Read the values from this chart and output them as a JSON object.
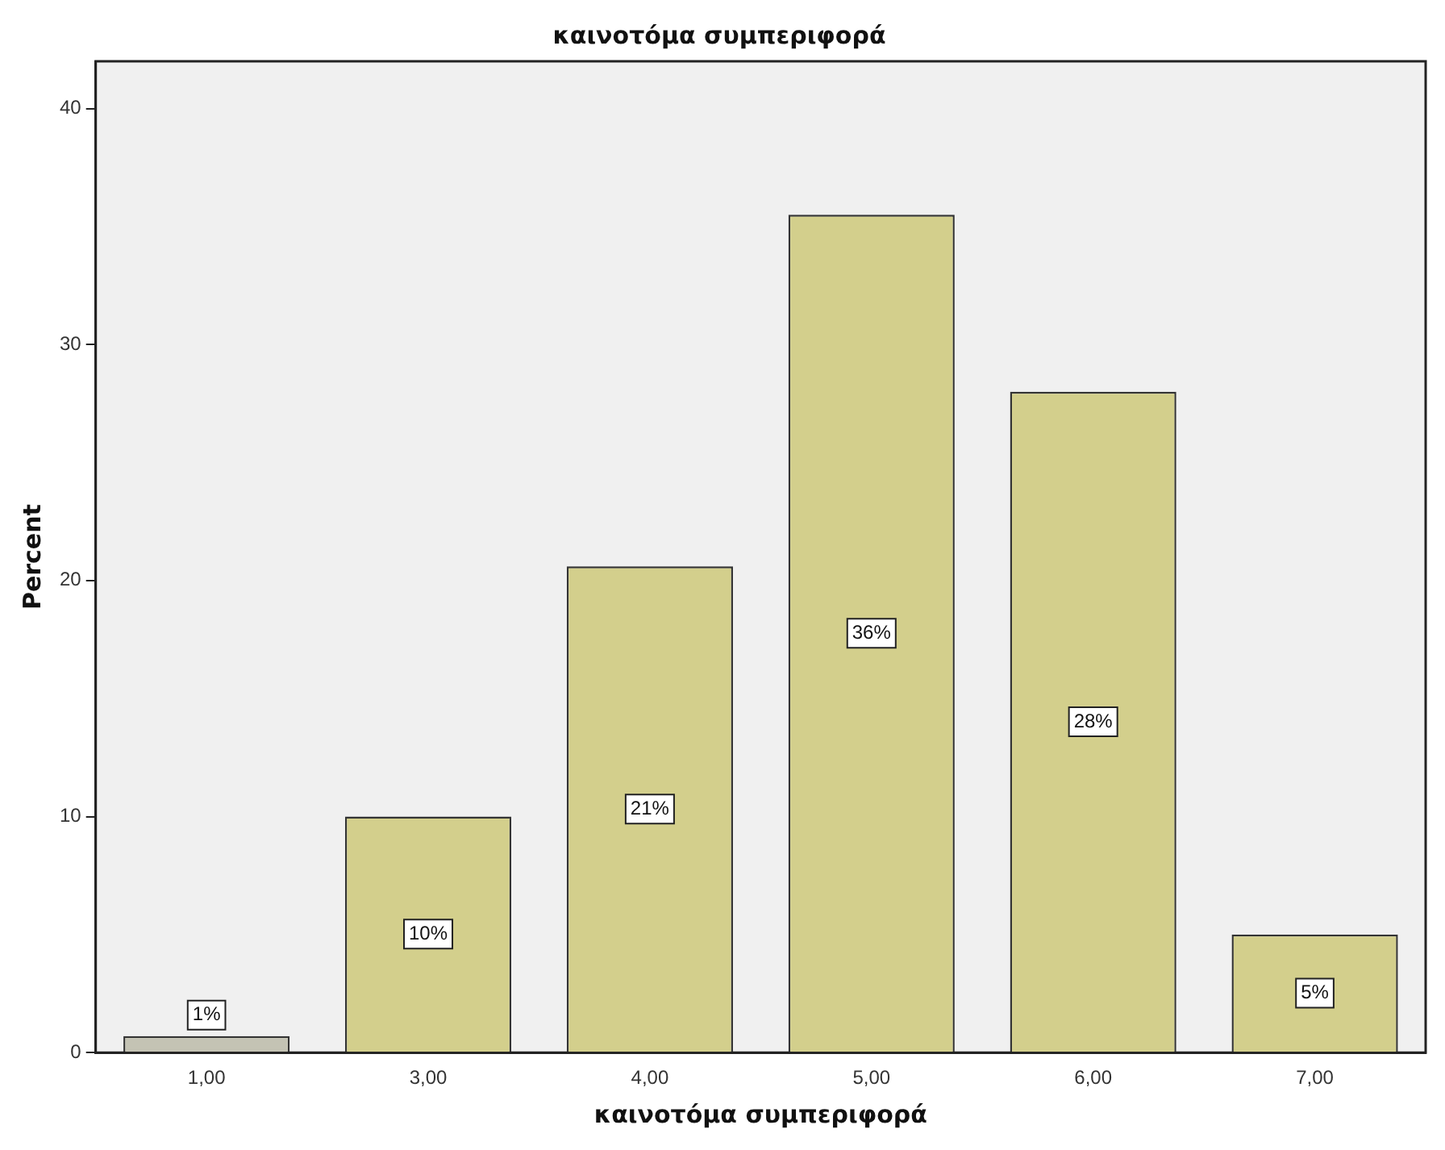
{
  "chart_data": {
    "type": "bar",
    "title": "καινοτόμα συμπεριφορά",
    "xlabel": "καινοτόμα συμπεριφορά",
    "ylabel": "Percent",
    "categories": [
      "1,00",
      "3,00",
      "4,00",
      "5,00",
      "6,00",
      "7,00"
    ],
    "values": [
      0.7,
      10,
      20.6,
      35.5,
      28,
      5
    ],
    "colors": [
      "#c4c3b4",
      "#d3cf8c",
      "#d3cf8c",
      "#d3cf8c",
      "#d3cf8c",
      "#d3cf8c"
    ],
    "value_labels": [
      "1%",
      "10%",
      "21%",
      "36%",
      "28%",
      "5%"
    ],
    "ylim": [
      0,
      42
    ],
    "yticks": [
      0,
      10,
      20,
      30,
      40
    ],
    "grid": false,
    "legend": false
  }
}
